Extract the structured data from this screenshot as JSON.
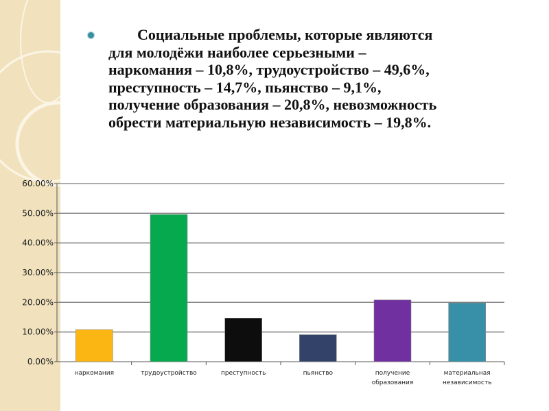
{
  "slide": {
    "text_lines": [
      "Социальные проблемы, которые являются",
      "для молодёжи наиболее серьезными –",
      "наркомания – 10,8%, трудоустройство – 49,6%,",
      "преступность – 14,7%, пьянство – 9,1%,",
      "получение образования – 20,8%, невозможность",
      "обрести материальную независимость – 19,8%."
    ]
  },
  "chart_data": {
    "type": "bar",
    "title": "",
    "xlabel": "",
    "ylabel": "",
    "categories": [
      [
        "наркомания"
      ],
      [
        "трудоустройство"
      ],
      [
        "преступность"
      ],
      [
        "пьянство"
      ],
      [
        "получение",
        "образования"
      ],
      [
        "материальная",
        "независимость"
      ]
    ],
    "values": [
      10.8,
      49.6,
      14.7,
      9.1,
      20.8,
      19.8
    ],
    "colors": [
      "#fbb613",
      "#06a94d",
      "#0d0d0d",
      "#324268",
      "#7030a0",
      "#3790a8"
    ],
    "ylim": [
      0,
      60
    ],
    "yticks": [
      "0.00%",
      "10.00%",
      "20.00%",
      "30.00%",
      "40.00%",
      "50.00%",
      "60.00%"
    ],
    "grid": true,
    "legend": "none"
  }
}
